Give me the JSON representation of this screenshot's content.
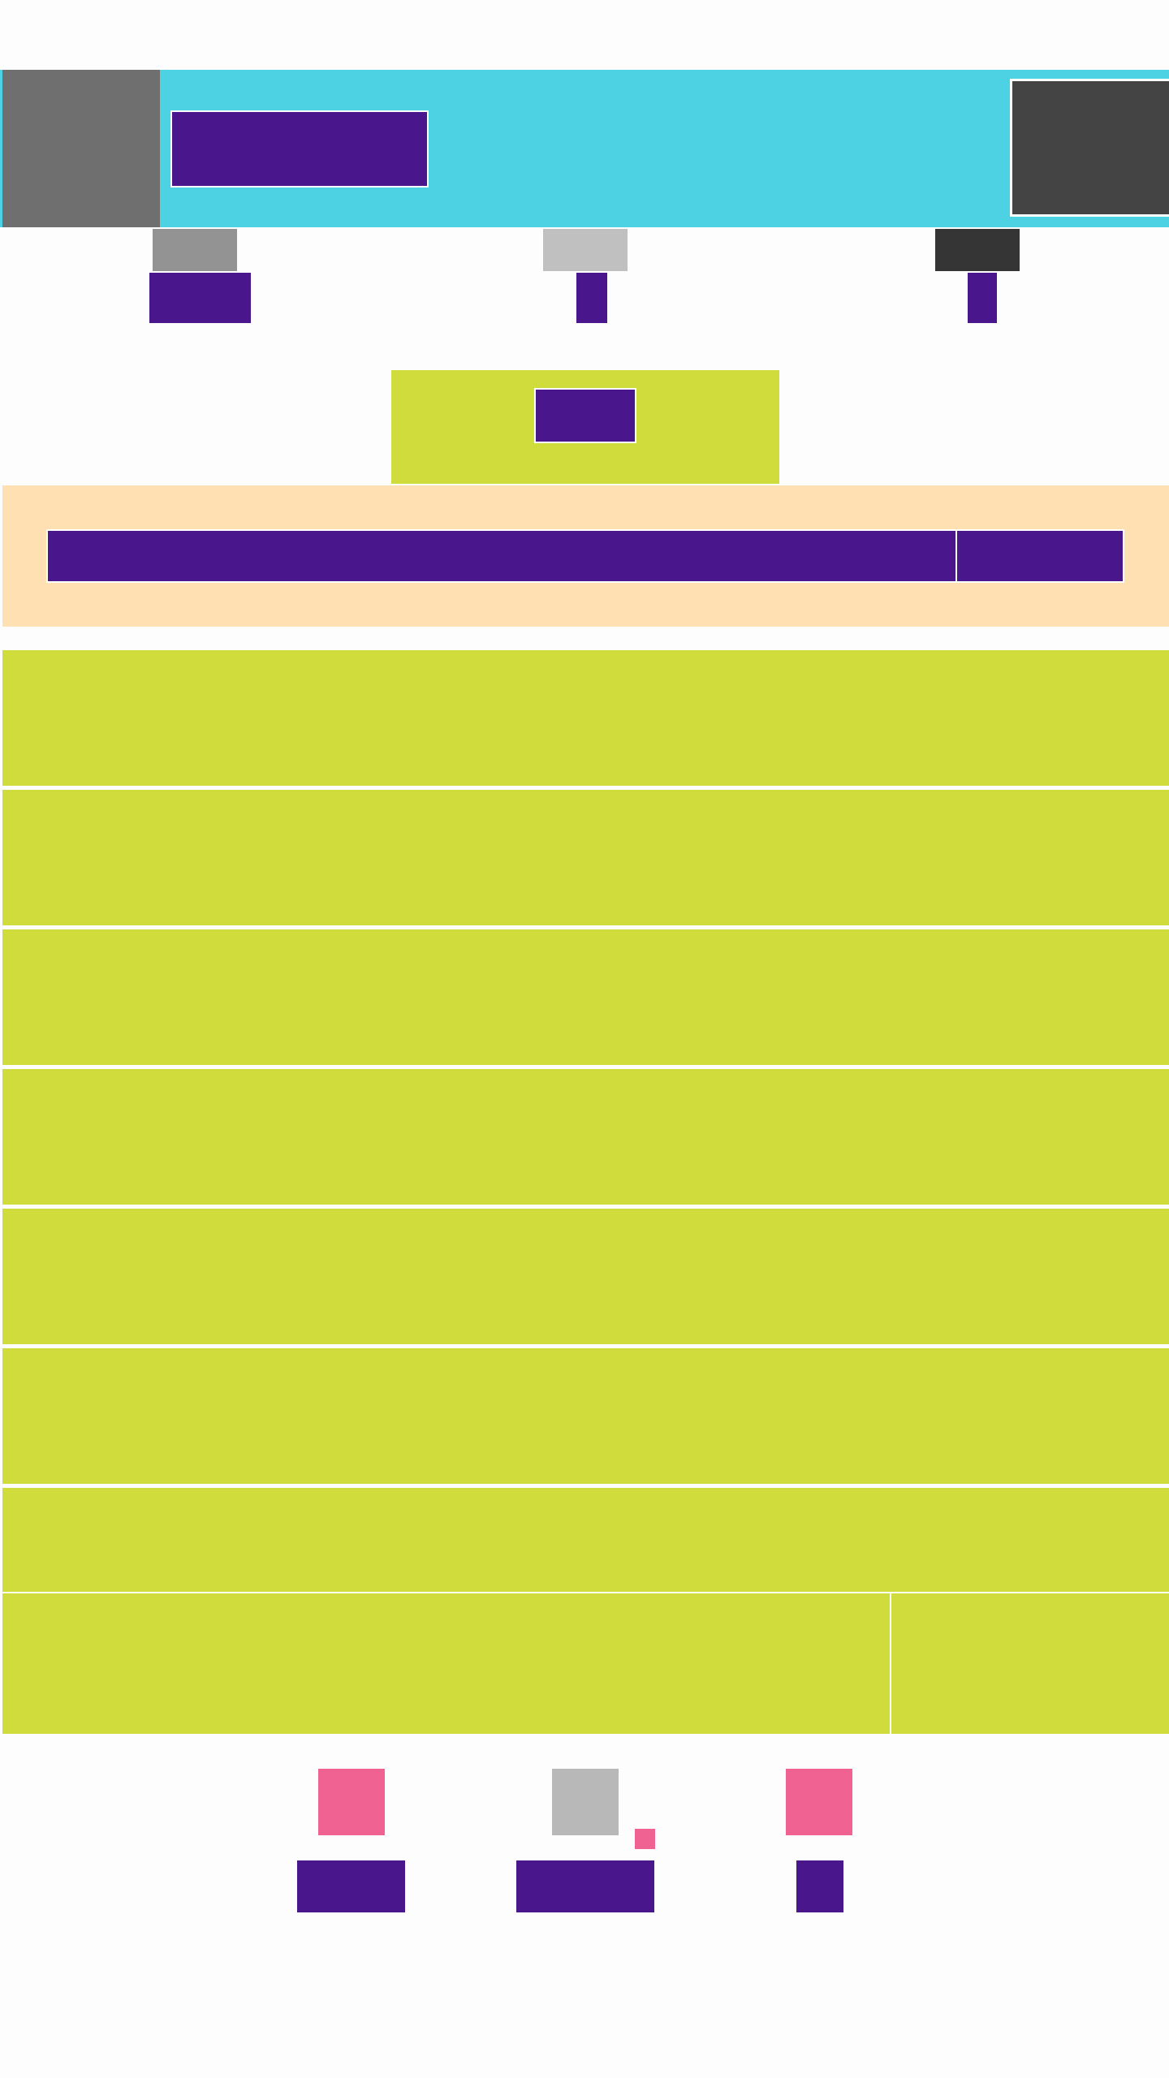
{
  "colors": {
    "page_background": "#fdfdfd",
    "header_background": "#4dd2e4",
    "header_left_block": "#6f6f6f",
    "header_right_block": "#444444",
    "text_placeholder": "#4a168c",
    "nav_icon_1": "#939393",
    "nav_icon_2": "#c0c0c0",
    "nav_icon_3": "#353535",
    "card_background": "#d0dc3b",
    "banner_background": "#ffe0b3",
    "bottom_icon_accent": "#f06292",
    "bottom_icon_neutral": "#b8b8b8",
    "notification_dot": "#f06292"
  },
  "header": {
    "left_icon": "menu-icon",
    "title": "",
    "right_icon": "profile-icon"
  },
  "nav": {
    "items": [
      {
        "icon": "nav-icon-1",
        "label": ""
      },
      {
        "icon": "nav-icon-2",
        "label": ""
      },
      {
        "icon": "nav-icon-3",
        "label": ""
      }
    ]
  },
  "feature": {
    "button_label": ""
  },
  "banner": {
    "message": "",
    "action_label": ""
  },
  "list": {
    "items": [
      {
        "label": ""
      },
      {
        "label": ""
      },
      {
        "label": ""
      },
      {
        "label": ""
      },
      {
        "label": ""
      },
      {
        "label": ""
      },
      {
        "label": ""
      }
    ]
  },
  "split_cards": {
    "left_label": "",
    "right_label": ""
  },
  "bottom_nav": {
    "items": [
      {
        "icon": "tab-icon-1",
        "label": "",
        "has_badge": false
      },
      {
        "icon": "tab-icon-2",
        "label": "",
        "has_badge": true
      },
      {
        "icon": "tab-icon-3",
        "label": "",
        "has_badge": false
      }
    ]
  }
}
